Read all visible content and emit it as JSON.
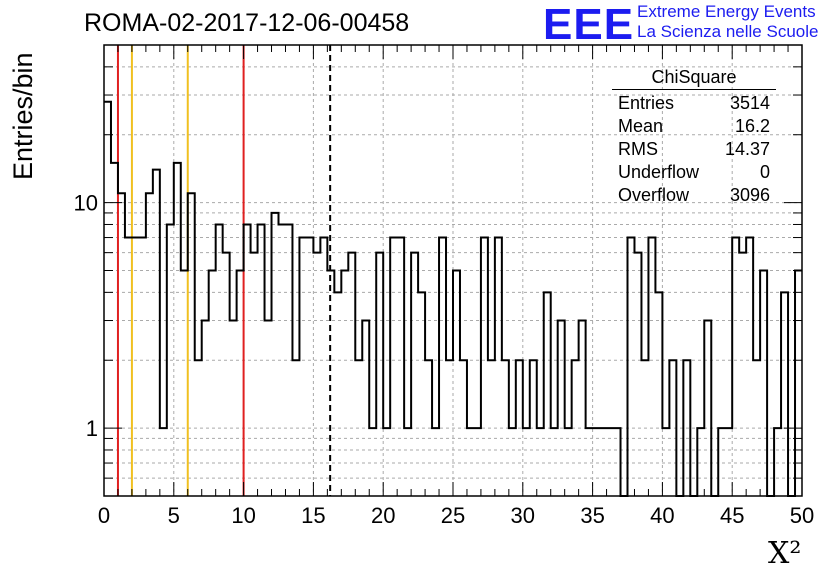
{
  "header": {
    "run_title": "ROMA-02-2017-12-06-00458",
    "logo_text": "EEE",
    "brand_line1": "Extreme Energy Events",
    "brand_line2": "La Scienza nelle Scuole"
  },
  "stats_box": {
    "title": "ChiSquare",
    "rows": [
      {
        "label": "Entries",
        "value": "3514"
      },
      {
        "label": "Mean",
        "value": "16.2"
      },
      {
        "label": "RMS",
        "value": "14.37"
      },
      {
        "label": "Underflow",
        "value": "0"
      },
      {
        "label": "Overflow",
        "value": "3096"
      }
    ]
  },
  "chart_data": {
    "type": "bar",
    "style": "step histogram",
    "title": "ROMA-02-2017-12-06-00458",
    "xlabel": "X²",
    "ylabel": "Entries/bin",
    "xlim": [
      0,
      50
    ],
    "ylim": [
      0.5,
      50
    ],
    "y_scale": "log",
    "grid": true,
    "bin_width": 0.5,
    "bin_counts": [
      28,
      15,
      11,
      7,
      7,
      7,
      11,
      14,
      1,
      8,
      15,
      5,
      11,
      2,
      3,
      5,
      8,
      6,
      3,
      5,
      8,
      6,
      8,
      3,
      9,
      8,
      8,
      2,
      7,
      7,
      6,
      7,
      5,
      4,
      5,
      6,
      2,
      3,
      1,
      6,
      1,
      7,
      7,
      1,
      6,
      4,
      2,
      1,
      7,
      2,
      5,
      2,
      1,
      1,
      7,
      2,
      7,
      2,
      1,
      2,
      1,
      2,
      1,
      4,
      1,
      3,
      1,
      2,
      3,
      1,
      1,
      1,
      1,
      1,
      0,
      7,
      6,
      2,
      7,
      4,
      1,
      2,
      0,
      2,
      0,
      1,
      3,
      0,
      1,
      1,
      7,
      6,
      7,
      2,
      5,
      0,
      1,
      4,
      0,
      5
    ],
    "x_ticks": [
      0,
      5,
      10,
      15,
      20,
      25,
      30,
      35,
      40,
      45,
      50
    ],
    "y_ticks": [
      1,
      10
    ],
    "markers": [
      {
        "x": 1,
        "color": "#e02020",
        "style": "solid"
      },
      {
        "x": 2,
        "color": "#f0c020",
        "style": "solid"
      },
      {
        "x": 6,
        "color": "#f0c020",
        "style": "solid"
      },
      {
        "x": 10,
        "color": "#e02020",
        "style": "solid"
      },
      {
        "x": 16.2,
        "color": "#000000",
        "style": "dashed"
      }
    ]
  }
}
